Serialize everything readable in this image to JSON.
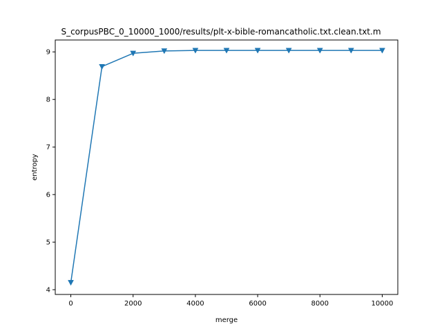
{
  "chart_data": {
    "type": "line",
    "title": "S_corpusPBC_0_10000_1000/results/plt-x-bible-romancatholic.txt.clean.txt.m",
    "xlabel": "merge",
    "ylabel": "entropy",
    "x": [
      0,
      1000,
      2000,
      3000,
      4000,
      5000,
      6000,
      7000,
      8000,
      9000,
      10000
    ],
    "series": [
      {
        "values": [
          4.15,
          8.69,
          8.97,
          9.02,
          9.03,
          9.03,
          9.03,
          9.03,
          9.03,
          9.03,
          9.03
        ],
        "color": "#1f77b4",
        "marker": "triangle-down"
      }
    ],
    "xlim": [
      -500,
      10500
    ],
    "ylim": [
      3.9,
      9.25
    ],
    "xticks": [
      0,
      2000,
      4000,
      6000,
      8000,
      10000
    ],
    "xtick_labels": [
      "0",
      "2000",
      "4000",
      "6000",
      "8000",
      "10000"
    ],
    "yticks": [
      4,
      5,
      6,
      7,
      8,
      9
    ],
    "ytick_labels": [
      "4",
      "5",
      "6",
      "7",
      "8",
      "9"
    ],
    "grid": false,
    "legend": "none"
  }
}
